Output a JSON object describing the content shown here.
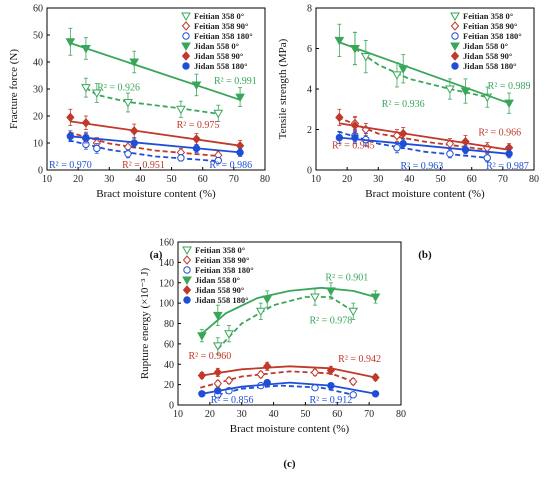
{
  "colors": {
    "green": "#3aa65a",
    "red": "#c0392b",
    "blue": "#1f4fd6",
    "axis": "#000000"
  },
  "chart_data": [
    {
      "type": "scatter",
      "panel_label": "(a)",
      "xlabel": "Bract moisture content (%)",
      "ylabel": "Fracture force (N)",
      "xlim": [
        10,
        80
      ],
      "ylim": [
        0,
        60
      ],
      "xticks": [
        "10",
        "20",
        "30",
        "40",
        "50",
        "60",
        "70",
        "80"
      ],
      "yticks": [
        "0",
        "10",
        "20",
        "30",
        "40",
        "50",
        "60"
      ],
      "legend_position": "top-right",
      "series": [
        {
          "name": "Feitian 358  0°",
          "color": "green",
          "marker": "tri-down-open",
          "dashed": true,
          "x": [
            22.5,
            26,
            36,
            53,
            65
          ],
          "y": [
            30.5,
            28.5,
            25.0,
            22.5,
            21.0
          ],
          "err": [
            3.5,
            3.5,
            3.5,
            3.0,
            3.0
          ],
          "fit": [
            [
              22.5,
              30.5
            ],
            [
              26,
              27.8
            ],
            [
              36,
              25.2
            ],
            [
              53,
              22.8
            ],
            [
              65,
              20.8
            ]
          ]
        },
        {
          "name": "Feitian 358  90°",
          "color": "red",
          "marker": "diamond-open",
          "dashed": true,
          "x": [
            22.5,
            26,
            36,
            53,
            65
          ],
          "y": [
            11.5,
            10.0,
            8.5,
            6.5,
            5.5
          ],
          "err": [
            2.0,
            2.0,
            1.8,
            1.5,
            1.5
          ],
          "fit": [
            [
              17,
              14.0
            ],
            [
              30,
              9.8
            ],
            [
              45,
              7.2
            ],
            [
              65,
              5.2
            ]
          ]
        },
        {
          "name": "Feitian 358  180°",
          "color": "blue",
          "marker": "circle-open",
          "dashed": true,
          "x": [
            22.5,
            26,
            36,
            53,
            65
          ],
          "y": [
            9.5,
            8.0,
            6.0,
            4.5,
            3.5
          ],
          "err": [
            1.8,
            1.8,
            1.5,
            1.2,
            1.2
          ],
          "fit": [
            [
              17,
              11.0
            ],
            [
              30,
              7.5
            ],
            [
              45,
              5.0
            ],
            [
              65,
              3.3
            ]
          ]
        },
        {
          "name": "Jidan 558  0°",
          "color": "green",
          "marker": "tri-down-filled",
          "dashed": false,
          "x": [
            17.5,
            22.5,
            38,
            58,
            72
          ],
          "y": [
            47.5,
            45.0,
            40.0,
            31.5,
            27.0
          ],
          "err": [
            5.0,
            4.0,
            4.0,
            4.0,
            3.5
          ],
          "fit": [
            [
              17.5,
              47.0
            ],
            [
              72,
              26.0
            ]
          ]
        },
        {
          "name": "Jidan 558  90°",
          "color": "red",
          "marker": "diamond-filled",
          "dashed": false,
          "x": [
            17.5,
            22.5,
            38,
            58,
            72
          ],
          "y": [
            19.5,
            17.5,
            14.5,
            11.5,
            9.0
          ],
          "err": [
            3.0,
            2.5,
            2.5,
            2.0,
            2.0
          ],
          "fit": [
            [
              17.5,
              18.0
            ],
            [
              72,
              9.0
            ]
          ]
        },
        {
          "name": "Jidan 558  180°",
          "color": "blue",
          "marker": "circle-filled",
          "dashed": false,
          "x": [
            17.5,
            22.5,
            38,
            58,
            72
          ],
          "y": [
            12.5,
            12.0,
            10.0,
            8.0,
            6.5
          ],
          "err": [
            2.0,
            2.0,
            1.8,
            1.5,
            1.5
          ],
          "fit": [
            [
              17.5,
              12.5
            ],
            [
              72,
              6.5
            ]
          ]
        }
      ],
      "annotations": [
        {
          "text": "R² = 0.991",
          "color": "green",
          "x": 70.5,
          "y": 31.8
        },
        {
          "text": "R² = 0.926",
          "color": "green",
          "x": 33,
          "y": 29.5
        },
        {
          "text": "R² = 0.975",
          "color": "red",
          "x": 58.5,
          "y": 15.6
        },
        {
          "text": "R² = 0.970",
          "color": "blue",
          "x": 17.5,
          "y": 0.8
        },
        {
          "text": "R² = 0.951",
          "color": "red",
          "x": 41,
          "y": 0.8
        },
        {
          "text": "R² = 0.986",
          "color": "blue",
          "x": 69,
          "y": 0.8
        }
      ]
    },
    {
      "type": "scatter",
      "panel_label": "(b)",
      "xlabel": "Bract moisture content (%)",
      "ylabel": "Tensile strength (MPa)",
      "xlim": [
        10,
        80
      ],
      "ylim": [
        0,
        8
      ],
      "xticks": [
        "10",
        "20",
        "30",
        "40",
        "50",
        "60",
        "70",
        "80"
      ],
      "yticks": [
        "0",
        "2",
        "4",
        "6",
        "8"
      ],
      "legend_position": "top-right",
      "series": [
        {
          "name": "Feitian 358  0°",
          "color": "green",
          "marker": "tri-down-open",
          "dashed": true,
          "x": [
            22.5,
            26,
            36,
            53,
            65
          ],
          "y": [
            6.0,
            5.6,
            4.7,
            4.0,
            3.6
          ],
          "err": [
            0.8,
            0.8,
            0.6,
            0.5,
            0.5
          ],
          "fit": [
            [
              22.5,
              6.0
            ],
            [
              30,
              5.2
            ],
            [
              40,
              4.5
            ],
            [
              53,
              4.0
            ],
            [
              65,
              3.6
            ]
          ]
        },
        {
          "name": "Feitian 358  90°",
          "color": "red",
          "marker": "diamond-open",
          "dashed": true,
          "x": [
            22.5,
            26,
            36,
            53,
            65
          ],
          "y": [
            2.3,
            2.0,
            1.7,
            1.3,
            1.1
          ],
          "err": [
            0.35,
            0.3,
            0.3,
            0.25,
            0.25
          ],
          "fit": [
            [
              17,
              2.6
            ],
            [
              30,
              1.8
            ],
            [
              45,
              1.4
            ],
            [
              65,
              1.0
            ]
          ]
        },
        {
          "name": "Feitian 358  180°",
          "color": "blue",
          "marker": "circle-open",
          "dashed": true,
          "x": [
            22.5,
            26,
            36,
            53,
            65
          ],
          "y": [
            1.7,
            1.5,
            1.1,
            0.8,
            0.6
          ],
          "err": [
            0.3,
            0.3,
            0.25,
            0.2,
            0.2
          ],
          "fit": [
            [
              17,
              1.9
            ],
            [
              30,
              1.3
            ],
            [
              45,
              0.9
            ],
            [
              65,
              0.6
            ]
          ]
        },
        {
          "name": "Jidan 558  0°",
          "color": "green",
          "marker": "tri-down-filled",
          "dashed": false,
          "x": [
            17.5,
            22.5,
            38,
            58,
            72
          ],
          "y": [
            6.4,
            6.0,
            5.0,
            3.9,
            3.3
          ],
          "err": [
            0.8,
            0.8,
            0.7,
            0.6,
            0.5
          ],
          "fit": [
            [
              17.5,
              6.3
            ],
            [
              72,
              3.3
            ]
          ]
        },
        {
          "name": "Jidan 558  90°",
          "color": "red",
          "marker": "diamond-filled",
          "dashed": false,
          "x": [
            17.5,
            22.5,
            38,
            58,
            72
          ],
          "y": [
            2.6,
            2.2,
            1.8,
            1.4,
            1.1
          ],
          "err": [
            0.4,
            0.4,
            0.3,
            0.3,
            0.2
          ],
          "fit": [
            [
              17.5,
              2.3
            ],
            [
              72,
              1.0
            ]
          ]
        },
        {
          "name": "Jidan 558  180°",
          "color": "blue",
          "marker": "circle-filled",
          "dashed": false,
          "x": [
            17.5,
            22.5,
            38,
            58,
            72
          ],
          "y": [
            1.6,
            1.6,
            1.3,
            1.0,
            0.8
          ],
          "err": [
            0.3,
            0.3,
            0.25,
            0.2,
            0.2
          ],
          "fit": [
            [
              17.5,
              1.6
            ],
            [
              72,
              0.8
            ]
          ]
        }
      ],
      "annotations": [
        {
          "text": "R² = 0.989",
          "color": "green",
          "x": 72,
          "y": 4.0
        },
        {
          "text": "R² = 0.936",
          "color": "green",
          "x": 38,
          "y": 3.1
        },
        {
          "text": "R² = 0.966",
          "color": "red",
          "x": 69,
          "y": 1.7
        },
        {
          "text": "R² = 0.945",
          "color": "red",
          "x": 22,
          "y": 1.05
        },
        {
          "text": "R² = 0.963",
          "color": "blue",
          "x": 44,
          "y": 0.05
        },
        {
          "text": "R² = 0.987",
          "color": "blue",
          "x": 71.5,
          "y": 0.05
        }
      ]
    },
    {
      "type": "scatter",
      "panel_label": "(c)",
      "xlabel": "Bract moisture content (%)",
      "ylabel": "Rupture energy (×10⁻³ J)",
      "xlim": [
        10,
        80
      ],
      "ylim": [
        0,
        160
      ],
      "xticks": [
        "10",
        "20",
        "30",
        "40",
        "50",
        "60",
        "70",
        "80"
      ],
      "yticks": [
        "0",
        "20",
        "40",
        "60",
        "80",
        "100",
        "120",
        "140",
        "160"
      ],
      "legend_position": "top-left",
      "series": [
        {
          "name": "Feitian 358  0°",
          "color": "green",
          "marker": "tri-down-open",
          "dashed": true,
          "x": [
            22.5,
            26,
            36,
            53,
            65
          ],
          "y": [
            58,
            70,
            92,
            106,
            92
          ],
          "err": [
            8,
            8,
            8,
            8,
            8
          ],
          "fit": [
            [
              22.5,
              55
            ],
            [
              30,
              80
            ],
            [
              40,
              98
            ],
            [
              50,
              106
            ],
            [
              58,
              106
            ],
            [
              65,
              92
            ]
          ]
        },
        {
          "name": "Feitian 358  90°",
          "color": "red",
          "marker": "diamond-open",
          "dashed": true,
          "x": [
            22.5,
            26,
            36,
            53,
            65
          ],
          "y": [
            21,
            24,
            30,
            32,
            23
          ],
          "err": [
            3,
            3,
            3,
            3,
            3
          ],
          "fit": [
            [
              17,
              17
            ],
            [
              30,
              28
            ],
            [
              45,
              33
            ],
            [
              58,
              31
            ],
            [
              65,
              23
            ]
          ]
        },
        {
          "name": "Feitian 358  180°",
          "color": "blue",
          "marker": "circle-open",
          "dashed": true,
          "x": [
            22.5,
            26,
            36,
            53,
            65
          ],
          "y": [
            10,
            14,
            19,
            17,
            10
          ],
          "err": [
            2,
            2,
            2,
            2,
            2
          ],
          "fit": [
            [
              22.5,
              10
            ],
            [
              30,
              16
            ],
            [
              42,
              19
            ],
            [
              55,
              17
            ],
            [
              65,
              10
            ]
          ]
        },
        {
          "name": "Jidan 558  0°",
          "color": "green",
          "marker": "tri-down-filled",
          "dashed": false,
          "x": [
            17.5,
            22.5,
            38,
            58,
            72
          ],
          "y": [
            68,
            88,
            104,
            112,
            106
          ],
          "err": [
            6,
            10,
            8,
            8,
            6
          ],
          "fit": [
            [
              17.5,
              70
            ],
            [
              25,
              90
            ],
            [
              35,
              105
            ],
            [
              45,
              112
            ],
            [
              55,
              115
            ],
            [
              65,
              112
            ],
            [
              72,
              106
            ]
          ]
        },
        {
          "name": "Jidan 558  90°",
          "color": "red",
          "marker": "diamond-filled",
          "dashed": false,
          "x": [
            17.5,
            22.5,
            38,
            58,
            72
          ],
          "y": [
            29,
            32,
            38,
            34,
            27
          ],
          "err": [
            3,
            4,
            4,
            4,
            3
          ],
          "fit": [
            [
              17.5,
              29
            ],
            [
              30,
              35
            ],
            [
              45,
              38
            ],
            [
              58,
              36
            ],
            [
              72,
              27
            ]
          ]
        },
        {
          "name": "Jidan 558  180°",
          "color": "blue",
          "marker": "circle-filled",
          "dashed": false,
          "x": [
            17.5,
            22.5,
            38,
            58,
            72
          ],
          "y": [
            11,
            14,
            22,
            19,
            11
          ],
          "err": [
            2,
            2,
            2,
            2,
            2
          ],
          "fit": [
            [
              17.5,
              11
            ],
            [
              30,
              18
            ],
            [
              45,
              22
            ],
            [
              58,
              19
            ],
            [
              72,
              11
            ]
          ]
        }
      ],
      "annotations": [
        {
          "text": "R² = 0.901",
          "color": "green",
          "x": 63,
          "y": 122
        },
        {
          "text": "R² = 0.978",
          "color": "green",
          "x": 58,
          "y": 80
        },
        {
          "text": "R² = 0.960",
          "color": "red",
          "x": 20,
          "y": 45
        },
        {
          "text": "R² = 0.942",
          "color": "red",
          "x": 67,
          "y": 42
        },
        {
          "text": "R² = 0.856",
          "color": "blue",
          "x": 27,
          "y": 2
        },
        {
          "text": "R² = 0.912",
          "color": "blue",
          "x": 58,
          "y": 2
        }
      ]
    }
  ]
}
